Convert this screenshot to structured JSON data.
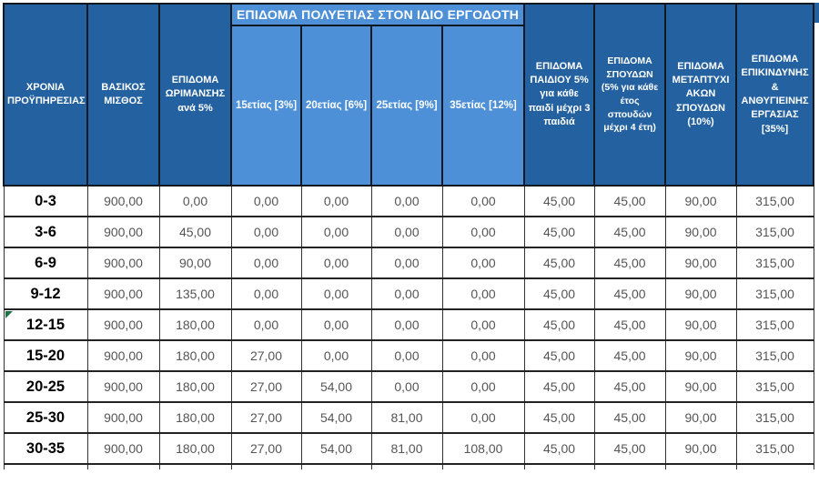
{
  "table": {
    "group_header": "ΕΠΙΔΟΜΑ ΠΟΛΥΕΤΙΑΣ ΣΤΟΝ ΙΔΙΟ ΕΡΓΟΔΟΤΗ",
    "columns": [
      {
        "id": "years",
        "label": "ΧΡΟΝΙΑ ΠΡΟΫΠΗΡΕΣΙΑΣ"
      },
      {
        "id": "basic",
        "label": "ΒΑΣΙΚΟΣ ΜΙΣΘΟΣ"
      },
      {
        "id": "maturity",
        "label": "ΕΠΙΔΟΜΑ ΩΡΙΜΑΝΣΗΣ ανά 5%"
      },
      {
        "id": "y15",
        "label": "15ετίας [3%]"
      },
      {
        "id": "y20",
        "label": "20ετίας [6%]"
      },
      {
        "id": "y25",
        "label": "25ετίας [9%]"
      },
      {
        "id": "y35",
        "label": "35ετίας [12%]"
      },
      {
        "id": "child",
        "label": "ΕΠΙΔΟΜΑ ΠΑΙΔΙΟΥ 5% για κάθε παιδί μέχρι 3 παιδιά"
      },
      {
        "id": "studies",
        "label": "ΕΠΙΔΟΜΑ ΣΠΟΥΔΩΝ (5% για κάθε έτος σπουδών μέχρι 4 έτη)"
      },
      {
        "id": "postgrad",
        "label": "ΕΠΙΔΟΜΑ ΜΕΤΑΠΤΥΧΙΑΚΩΝ ΣΠΟΥΔΩΝ (10%)"
      },
      {
        "id": "hazard",
        "label": "ΕΠΙΔΟΜΑ ΕΠΙΚΙΝΔΥΝΗΣ & ΑΝΘΥΓΙΕΙΝΗΣ ΕΡΓΑΣΙΑΣ [35%]"
      }
    ],
    "rows": [
      {
        "years": "0-3",
        "has_marker": false,
        "values": [
          "900,00",
          "0,00",
          "0,00",
          "0,00",
          "0,00",
          "0,00",
          "45,00",
          "45,00",
          "90,00",
          "315,00"
        ]
      },
      {
        "years": "3-6",
        "has_marker": false,
        "values": [
          "900,00",
          "45,00",
          "0,00",
          "0,00",
          "0,00",
          "0,00",
          "45,00",
          "45,00",
          "90,00",
          "315,00"
        ]
      },
      {
        "years": "6-9",
        "has_marker": false,
        "values": [
          "900,00",
          "90,00",
          "0,00",
          "0,00",
          "0,00",
          "0,00",
          "45,00",
          "45,00",
          "90,00",
          "315,00"
        ]
      },
      {
        "years": "9-12",
        "has_marker": false,
        "values": [
          "900,00",
          "135,00",
          "0,00",
          "0,00",
          "0,00",
          "0,00",
          "45,00",
          "45,00",
          "90,00",
          "315,00"
        ]
      },
      {
        "years": "12-15",
        "has_marker": true,
        "values": [
          "900,00",
          "180,00",
          "0,00",
          "0,00",
          "0,00",
          "0,00",
          "45,00",
          "45,00",
          "90,00",
          "315,00"
        ]
      },
      {
        "years": "15-20",
        "has_marker": false,
        "values": [
          "900,00",
          "180,00",
          "27,00",
          "0,00",
          "0,00",
          "0,00",
          "45,00",
          "45,00",
          "90,00",
          "315,00"
        ]
      },
      {
        "years": "20-25",
        "has_marker": false,
        "values": [
          "900,00",
          "180,00",
          "27,00",
          "54,00",
          "0,00",
          "0,00",
          "45,00",
          "45,00",
          "90,00",
          "315,00"
        ]
      },
      {
        "years": "25-30",
        "has_marker": false,
        "values": [
          "900,00",
          "180,00",
          "27,00",
          "54,00",
          "81,00",
          "0,00",
          "45,00",
          "45,00",
          "90,00",
          "315,00"
        ]
      },
      {
        "years": "30-35",
        "has_marker": false,
        "values": [
          "900,00",
          "180,00",
          "27,00",
          "54,00",
          "81,00",
          "108,00",
          "45,00",
          "45,00",
          "90,00",
          "315,00"
        ]
      }
    ]
  },
  "colors": {
    "header_dark_blue": "#2361a0",
    "header_light_blue": "#4e90d8",
    "grid_border": "#222222",
    "value_text": "#555555",
    "row_label_text": "#000000",
    "header_text": "#ffffff",
    "corner_indicator_green": "#1e7145"
  }
}
